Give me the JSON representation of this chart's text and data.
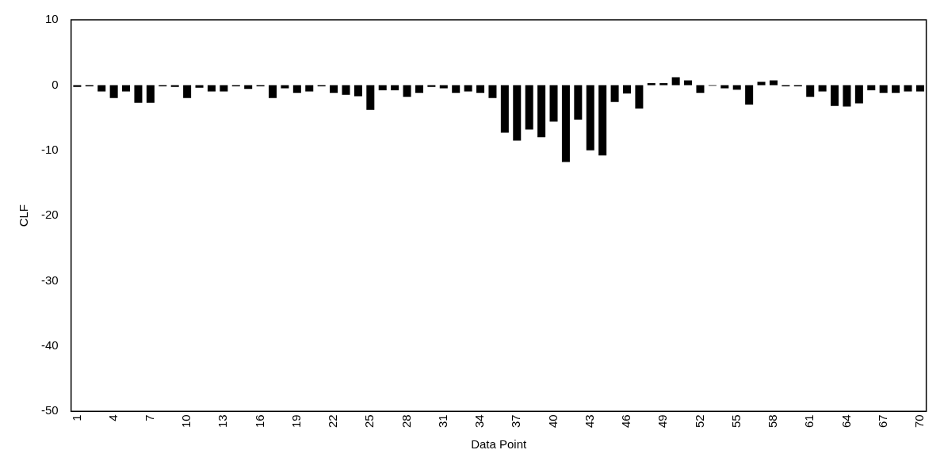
{
  "chart_data": {
    "type": "bar",
    "xlabel": "Data Point",
    "ylabel": "CLF",
    "categories": [
      "1",
      null,
      null,
      "4",
      null,
      null,
      "7",
      null,
      null,
      "10",
      null,
      null,
      "13",
      null,
      null,
      "16",
      null,
      null,
      "19",
      null,
      null,
      "22",
      null,
      null,
      "25",
      null,
      null,
      "28",
      null,
      null,
      "31",
      null,
      null,
      "34",
      null,
      null,
      "37",
      null,
      null,
      "40",
      null,
      null,
      "43",
      null,
      null,
      "46",
      null,
      null,
      "49",
      null,
      null,
      "52",
      null,
      null,
      "55",
      null,
      null,
      "58",
      null,
      null,
      "61",
      null,
      null,
      "64",
      null,
      null,
      "67",
      null,
      null,
      "70"
    ],
    "values": [
      -0.3,
      -0.2,
      -1,
      -2,
      -1,
      -2.7,
      -2.7,
      -0.2,
      -0.3,
      -2,
      -0.4,
      -1,
      -1,
      -0.2,
      -0.6,
      -0.2,
      -2,
      -0.5,
      -1.2,
      -1,
      -0.2,
      -1.2,
      -1.5,
      -1.7,
      -3.8,
      -0.8,
      -0.8,
      -1.8,
      -1.2,
      -0.3,
      -0.5,
      -1.2,
      -1,
      -1.2,
      -2,
      -7.3,
      -8.5,
      -6.8,
      -8,
      -5.6,
      -11.8,
      -5.3,
      -10,
      -10.8,
      -2.6,
      -1.3,
      -3.6,
      0.3,
      0.3,
      1.2,
      0.7,
      -1.2,
      -0.1,
      -0.5,
      -0.7,
      -3,
      0.5,
      0.7,
      -0.2,
      -0.2,
      -1.8,
      -1,
      -3.2,
      -3.3,
      -2.8,
      -0.8,
      -1.2,
      -1.2,
      -1,
      -1
    ],
    "color": "#000000",
    "ylim": [
      -50,
      10
    ],
    "yticks": [
      -50,
      -40,
      -30,
      -20,
      -10,
      0,
      10
    ],
    "grid": false,
    "legend": false
  }
}
